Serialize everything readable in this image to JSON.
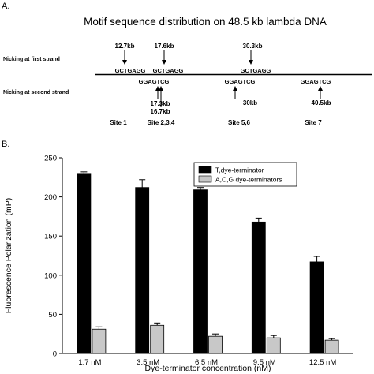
{
  "panel_a": {
    "label": "A.",
    "title": "Motif sequence distribution on 48.5 kb lambda DNA",
    "strand_labels": {
      "first": "Nicking at first strand",
      "second": "Nicking at second strand"
    },
    "top_sites": [
      {
        "kb": "12.7kb",
        "seq": "GCTGAGG"
      },
      {
        "kb": "17.6kb",
        "seq": "GCTGAGG"
      },
      {
        "kb": "30.3kb",
        "seq": "GCTGAGG"
      }
    ],
    "bottom_sites": [
      {
        "seq": "GGAGTCG",
        "kb_lines": [
          "17.3kb",
          "16.7kb"
        ]
      },
      {
        "seq": "GGAGTCG",
        "kb_lines": [
          "30kb"
        ]
      },
      {
        "seq": "GGAGTCG",
        "kb_lines": [
          "40.5kb"
        ]
      }
    ],
    "site_labels": [
      "Site 1",
      "Site 2,3,4",
      "Site 5,6",
      "Site 7"
    ]
  },
  "panel_b": {
    "label": "B."
  },
  "chart_data": {
    "type": "bar",
    "categories": [
      "1.7 nM",
      "3.5 nM",
      "6.5 nM",
      "9.5 nM",
      "12.5 nM"
    ],
    "series": [
      {
        "name": "T,dye-terminator",
        "color": "#000000",
        "values": [
          230,
          212,
          209,
          168,
          117
        ],
        "errors": [
          2,
          10,
          3,
          5,
          7
        ]
      },
      {
        "name": "A,C,G dye-terminators",
        "color": "#c8c8c8",
        "values": [
          31,
          36,
          22,
          20,
          17
        ],
        "errors": [
          3,
          3,
          3,
          3,
          2
        ]
      }
    ],
    "title": "",
    "xlabel": "Dye-terminator concentration (nM)",
    "ylabel": "Fluorescence Polarization (mP)",
    "ylim": [
      0,
      250
    ],
    "yticks": [
      0,
      50,
      100,
      150,
      200,
      250
    ],
    "legend": "top-right",
    "grid": false
  }
}
